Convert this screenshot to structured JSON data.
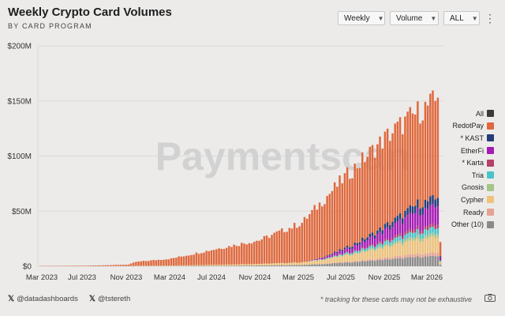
{
  "header": {
    "title": "Weekly Crypto Card Volumes",
    "subtitle": "BY CARD PROGRAM"
  },
  "controls": {
    "interval": "Weekly",
    "metric": "Volume",
    "range": "ALL",
    "menu_icon": "kebab-menu-icon"
  },
  "watermark": "Paymentscan",
  "footer": {
    "accounts": [
      "@datadashboards",
      "@tstereth"
    ],
    "note": "* tracking for these cards may not be exhaustive",
    "camera_icon": "camera-icon"
  },
  "chart_data": {
    "type": "bar",
    "stacked": true,
    "title": "Weekly Crypto Card Volumes",
    "xlabel": "",
    "ylabel": "",
    "ylim": [
      0,
      200
    ],
    "yunit": "M",
    "y_ticks": [
      "$0",
      "$50M",
      "$100M",
      "$150M",
      "$200M"
    ],
    "x_ticks": [
      "Mar 2023",
      "Jul 2023",
      "Nov 2023",
      "Mar 2024",
      "Jul 2024",
      "Nov 2024",
      "Mar 2025",
      "Jul 2025",
      "Nov 2025",
      "Mar 2026"
    ],
    "grid": true,
    "legend_position": "right",
    "legend": [
      {
        "name": "All",
        "color": "#3a3a3a"
      },
      {
        "name": "RedotPay",
        "color": "#e0683c"
      },
      {
        "name": "* KAST",
        "color": "#243c78"
      },
      {
        "name": "EtherFi",
        "color": "#a51ab5"
      },
      {
        "name": "* Karta",
        "color": "#b5406a"
      },
      {
        "name": "Tria",
        "color": "#4bc3c9"
      },
      {
        "name": "Gnosis",
        "color": "#a6c48a"
      },
      {
        "name": "Cypher",
        "color": "#efc27a"
      },
      {
        "name": "Ready",
        "color": "#e6a293"
      },
      {
        "name": "Other (10)",
        "color": "#8a8a8a"
      }
    ],
    "approx_weekly_totals_M": {
      "Mar 2023": 0.3,
      "Jul 2023": 0.5,
      "Nov 2023": 1.5,
      "Dec 2023": 4,
      "Mar 2024": 7,
      "Jul 2024": 16,
      "Nov 2024": 24,
      "Mar 2025": 40,
      "Jul 2025": 82,
      "Nov 2025": 120,
      "Mar 2026": 142,
      "Peak": 153,
      "Latest partial week": 22
    }
  }
}
